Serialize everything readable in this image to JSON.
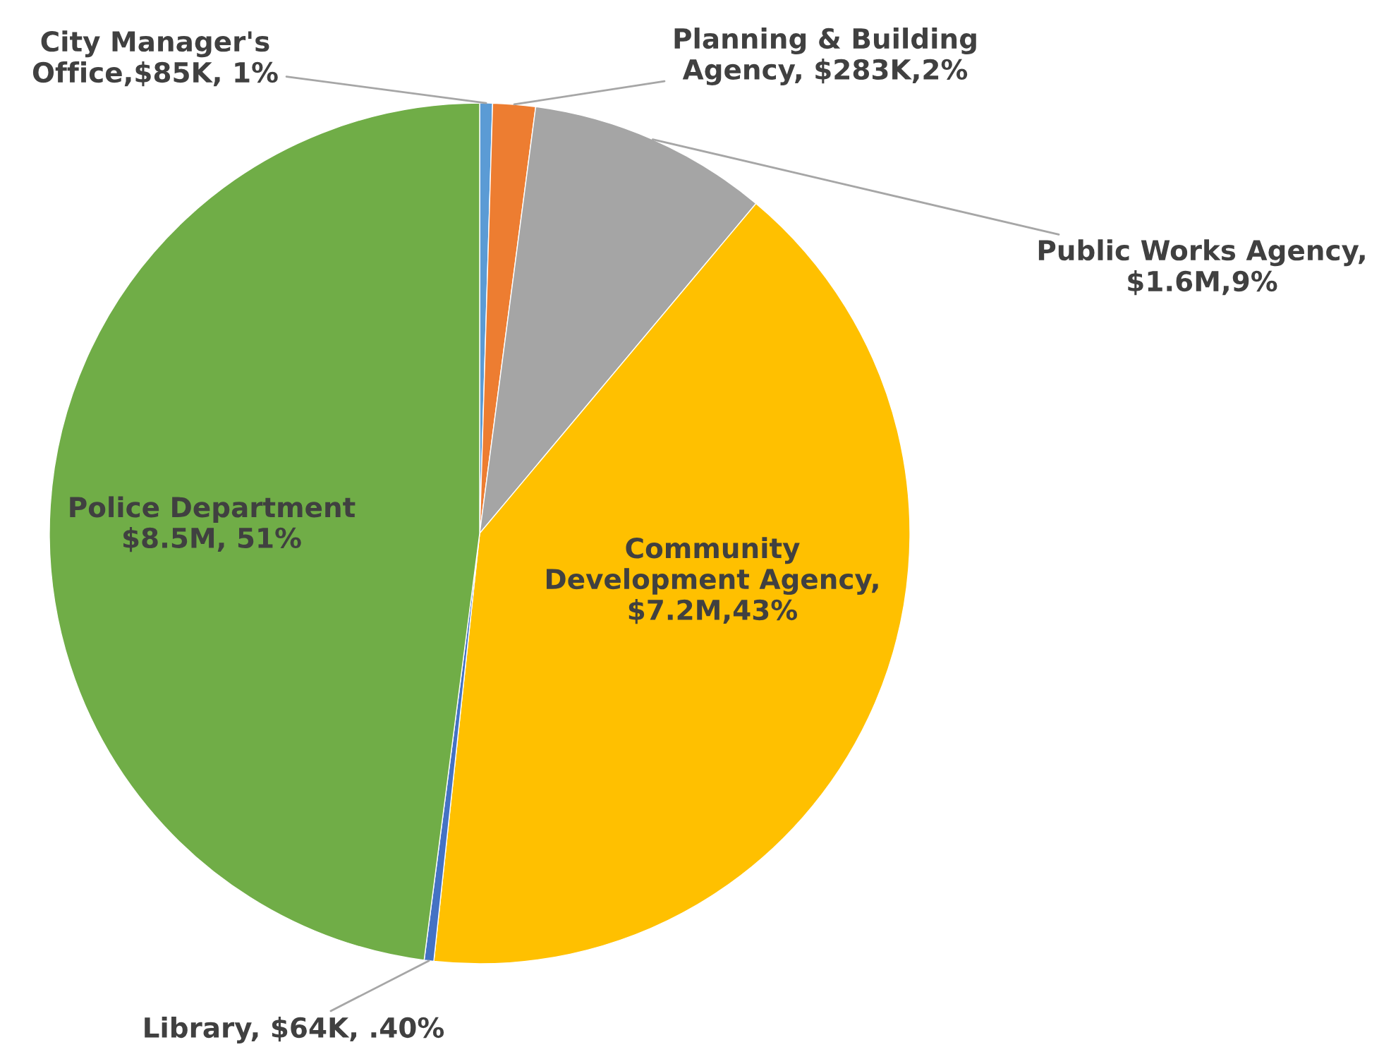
{
  "chart_data": {
    "type": "pie",
    "categories": [
      "City Manager's\nOffice,$85K, 1%",
      "Planning & Building\nAgency, $283K,2%",
      "Public Works Agency,\n$1.6M,9%",
      "Community\nDevelopment Agency,\n$7.2M,43%",
      "Library, $64K, .40%",
      "Police Department\n$8.5M, 51%"
    ],
    "values": [
      0.48,
      1.6,
      9.02,
      40.6,
      0.36,
      47.94
    ],
    "colors": [
      "#5b9bd5",
      "#ed7d31",
      "#a5a5a5",
      "#ffc000",
      "#4472c4",
      "#70ad47"
    ]
  }
}
